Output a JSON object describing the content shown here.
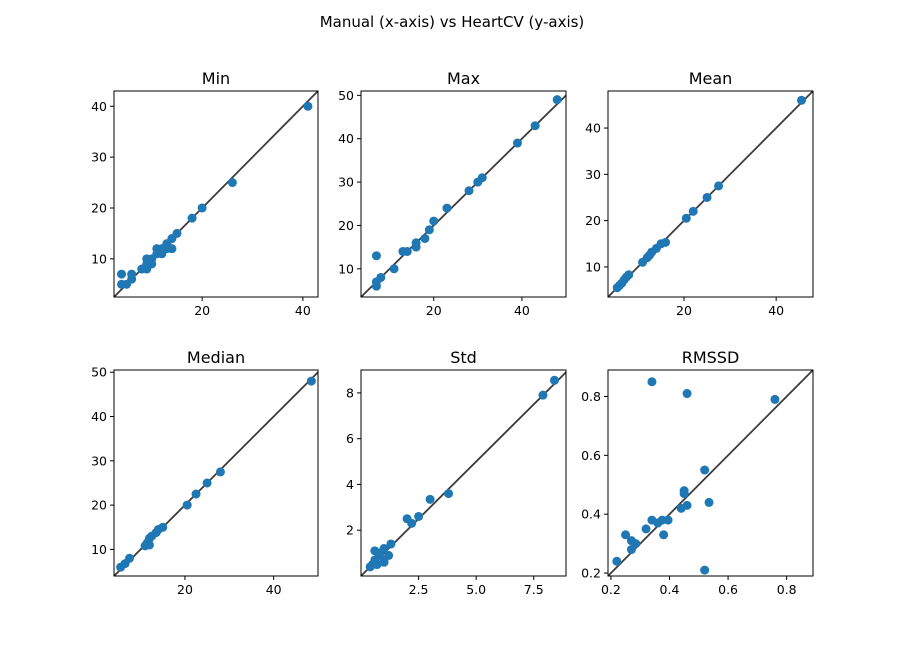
{
  "title": "Manual (x-axis) vs HeartCV (y-axis)",
  "marker_color": "#1f77b4",
  "line_color": "#3b3b3b",
  "chart_data": [
    {
      "type": "scatter",
      "title": "Min",
      "xlim": [
        2.5,
        43
      ],
      "ylim": [
        2.5,
        43
      ],
      "xticks": [
        20,
        40
      ],
      "yticks": [
        10,
        20,
        30,
        40
      ],
      "points": [
        [
          4,
          5
        ],
        [
          4,
          7
        ],
        [
          5,
          5
        ],
        [
          6,
          6
        ],
        [
          6,
          7
        ],
        [
          8,
          8
        ],
        [
          9,
          8
        ],
        [
          9,
          9
        ],
        [
          9,
          10
        ],
        [
          10,
          9
        ],
        [
          10,
          10
        ],
        [
          11,
          11
        ],
        [
          11,
          12
        ],
        [
          12,
          12
        ],
        [
          12,
          11
        ],
        [
          13,
          12
        ],
        [
          13,
          13
        ],
        [
          14,
          12
        ],
        [
          14,
          14
        ],
        [
          15,
          15
        ],
        [
          18,
          18
        ],
        [
          20,
          20
        ],
        [
          26,
          25
        ],
        [
          41,
          40
        ]
      ]
    },
    {
      "type": "scatter",
      "title": "Max",
      "xlim": [
        3.5,
        50
      ],
      "ylim": [
        3.5,
        51
      ],
      "xticks": [
        20,
        40
      ],
      "yticks": [
        10,
        20,
        30,
        40,
        50
      ],
      "points": [
        [
          7,
          13
        ],
        [
          7,
          6
        ],
        [
          7,
          7
        ],
        [
          8,
          8
        ],
        [
          11,
          10
        ],
        [
          13,
          14
        ],
        [
          14,
          14
        ],
        [
          16,
          15
        ],
        [
          16,
          16
        ],
        [
          18,
          17
        ],
        [
          19,
          19
        ],
        [
          20,
          21
        ],
        [
          23,
          24
        ],
        [
          28,
          28
        ],
        [
          30,
          30
        ],
        [
          31,
          31
        ],
        [
          39,
          39
        ],
        [
          43,
          43
        ],
        [
          48,
          49
        ]
      ]
    },
    {
      "type": "scatter",
      "title": "Mean",
      "xlim": [
        3.5,
        48
      ],
      "ylim": [
        3.5,
        48
      ],
      "xticks": [
        20,
        40
      ],
      "yticks": [
        10,
        20,
        30,
        40
      ],
      "points": [
        [
          5.5,
          5.5
        ],
        [
          6,
          6
        ],
        [
          6.5,
          6.5
        ],
        [
          7,
          7.2
        ],
        [
          7.5,
          7.8
        ],
        [
          8,
          8.3
        ],
        [
          11,
          11
        ],
        [
          12,
          12
        ],
        [
          12.5,
          12.5
        ],
        [
          13,
          13.2
        ],
        [
          14,
          14
        ],
        [
          15,
          15
        ],
        [
          16,
          15.3
        ],
        [
          20.5,
          20.5
        ],
        [
          22,
          22
        ],
        [
          25,
          25
        ],
        [
          27.5,
          27.5
        ],
        [
          45.5,
          46
        ]
      ]
    },
    {
      "type": "scatter",
      "title": "Median",
      "xlim": [
        4,
        50
      ],
      "ylim": [
        4,
        50.5
      ],
      "xticks": [
        20,
        40
      ],
      "yticks": [
        10,
        20,
        30,
        40,
        50
      ],
      "points": [
        [
          5.5,
          6
        ],
        [
          6.5,
          6.8
        ],
        [
          7.5,
          8
        ],
        [
          11,
          10.8
        ],
        [
          11.5,
          11.5
        ],
        [
          12,
          11
        ],
        [
          12,
          12.5
        ],
        [
          12.5,
          13
        ],
        [
          13.5,
          13.8
        ],
        [
          14,
          14.5
        ],
        [
          15,
          15
        ],
        [
          20.5,
          20
        ],
        [
          22.5,
          22.5
        ],
        [
          25,
          25
        ],
        [
          28,
          27.5
        ],
        [
          48.5,
          48
        ]
      ]
    },
    {
      "type": "scatter",
      "title": "Std",
      "xlim": [
        0,
        8.9
      ],
      "ylim": [
        0,
        9
      ],
      "xticks": [
        2.5,
        5.0,
        7.5
      ],
      "yticks": [
        2,
        4,
        6,
        8
      ],
      "points": [
        [
          0.4,
          0.4
        ],
        [
          0.5,
          0.5
        ],
        [
          0.6,
          0.7
        ],
        [
          0.6,
          1.1
        ],
        [
          0.7,
          0.5
        ],
        [
          0.8,
          0.9
        ],
        [
          0.8,
          1.0
        ],
        [
          1.0,
          0.7
        ],
        [
          1.0,
          0.6
        ],
        [
          1.0,
          1.2
        ],
        [
          1.2,
          0.9
        ],
        [
          1.3,
          1.4
        ],
        [
          2.0,
          2.5
        ],
        [
          2.2,
          2.3
        ],
        [
          2.5,
          2.6
        ],
        [
          3.0,
          3.35
        ],
        [
          3.8,
          3.6
        ],
        [
          7.9,
          7.9
        ],
        [
          8.4,
          8.55
        ]
      ]
    },
    {
      "type": "scatter",
      "title": "RMSSD",
      "xlim": [
        0.19,
        0.89
      ],
      "ylim": [
        0.19,
        0.89
      ],
      "xticks": [
        0.2,
        0.4,
        0.6,
        0.8
      ],
      "yticks": [
        0.2,
        0.4,
        0.6,
        0.8
      ],
      "points": [
        [
          0.22,
          0.24
        ],
        [
          0.25,
          0.33
        ],
        [
          0.27,
          0.31
        ],
        [
          0.27,
          0.28
        ],
        [
          0.285,
          0.3
        ],
        [
          0.32,
          0.35
        ],
        [
          0.34,
          0.85
        ],
        [
          0.34,
          0.38
        ],
        [
          0.36,
          0.37
        ],
        [
          0.375,
          0.38
        ],
        [
          0.38,
          0.33
        ],
        [
          0.395,
          0.38
        ],
        [
          0.44,
          0.42
        ],
        [
          0.45,
          0.48
        ],
        [
          0.45,
          0.47
        ],
        [
          0.46,
          0.81
        ],
        [
          0.46,
          0.43
        ],
        [
          0.52,
          0.55
        ],
        [
          0.52,
          0.21
        ],
        [
          0.535,
          0.44
        ],
        [
          0.76,
          0.79
        ]
      ]
    }
  ]
}
